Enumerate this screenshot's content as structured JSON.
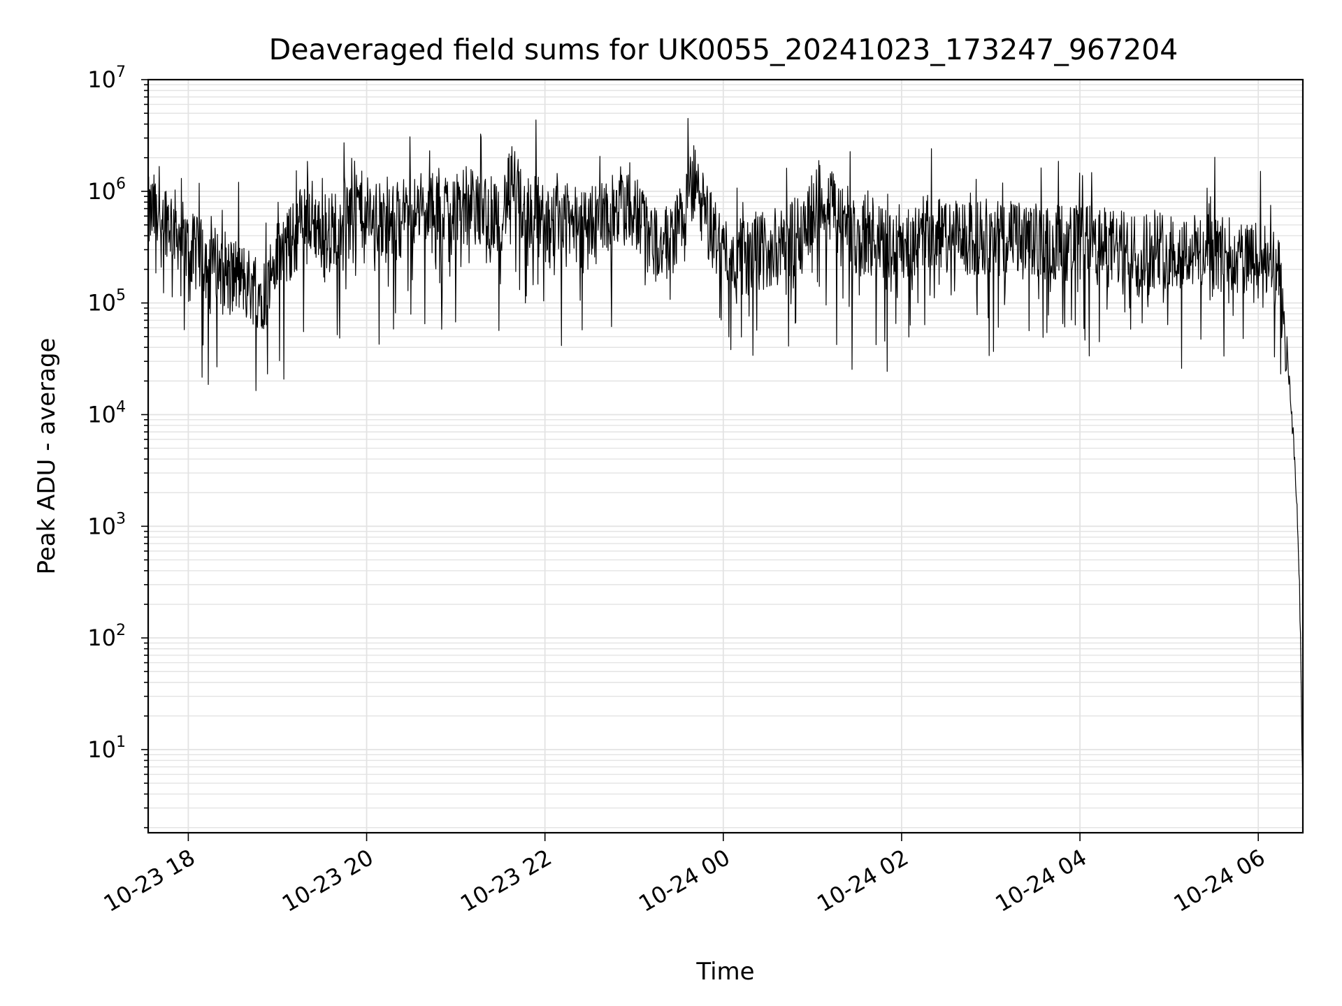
{
  "chart_data": {
    "type": "line",
    "title": "Deaveraged field sums for UK0055_20241023_173247_967204",
    "xlabel": "Time",
    "ylabel": "Peak ADU - average",
    "yscale": "log",
    "ylim": [
      1.8,
      10000000
    ],
    "xlim": [
      "2024-10-23 17:33",
      "2024-10-24 06:30"
    ],
    "grid": true,
    "line_color": "#000000",
    "x_ticks": [
      {
        "label": "10-23 18",
        "value": "2024-10-23 18:00"
      },
      {
        "label": "10-23 20",
        "value": "2024-10-23 20:00"
      },
      {
        "label": "10-23 22",
        "value": "2024-10-23 22:00"
      },
      {
        "label": "10-24 00",
        "value": "2024-10-24 00:00"
      },
      {
        "label": "10-24 02",
        "value": "2024-10-24 02:00"
      },
      {
        "label": "10-24 04",
        "value": "2024-10-24 04:00"
      },
      {
        "label": "10-24 06",
        "value": "2024-10-24 06:00"
      }
    ],
    "y_ticks": [
      {
        "base": "10",
        "exp": "1",
        "value": 10
      },
      {
        "base": "10",
        "exp": "2",
        "value": 100
      },
      {
        "base": "10",
        "exp": "3",
        "value": 1000
      },
      {
        "base": "10",
        "exp": "4",
        "value": 10000
      },
      {
        "base": "10",
        "exp": "5",
        "value": 100000
      },
      {
        "base": "10",
        "exp": "6",
        "value": 1000000
      },
      {
        "base": "10",
        "exp": "7",
        "value": 10000000
      }
    ],
    "series": [
      {
        "x": [
          "2024-10-23 17:33",
          "2024-10-23 17:40",
          "2024-10-23 17:50",
          "2024-10-23 18:00",
          "2024-10-23 18:10",
          "2024-10-23 18:25",
          "2024-10-23 18:40",
          "2024-10-23 18:50",
          "2024-10-23 19:00",
          "2024-10-23 19:10",
          "2024-10-23 19:20",
          "2024-10-23 19:30",
          "2024-10-23 19:40",
          "2024-10-23 19:50",
          "2024-10-23 20:00",
          "2024-10-23 20:15",
          "2024-10-23 20:30",
          "2024-10-23 20:45",
          "2024-10-23 21:00",
          "2024-10-23 21:15",
          "2024-10-23 21:30",
          "2024-10-23 21:38",
          "2024-10-23 21:45",
          "2024-10-23 22:00",
          "2024-10-23 22:20",
          "2024-10-23 22:40",
          "2024-10-23 23:00",
          "2024-10-23 23:10",
          "2024-10-23 23:20",
          "2024-10-23 23:30",
          "2024-10-23 23:40",
          "2024-10-23 23:50",
          "2024-10-24 00:00",
          "2024-10-24 00:15",
          "2024-10-24 00:30",
          "2024-10-24 00:45",
          "2024-10-24 00:55",
          "2024-10-24 01:05",
          "2024-10-24 01:15",
          "2024-10-24 01:25",
          "2024-10-24 01:40",
          "2024-10-24 02:00",
          "2024-10-24 02:20",
          "2024-10-24 02:40",
          "2024-10-24 03:00",
          "2024-10-24 03:30",
          "2024-10-24 04:00",
          "2024-10-24 04:30",
          "2024-10-24 05:00",
          "2024-10-24 05:30",
          "2024-10-24 05:50",
          "2024-10-24 06:10",
          "2024-10-24 06:15",
          "2024-10-24 06:18",
          "2024-10-24 06:21",
          "2024-10-24 06:24",
          "2024-10-24 06:26",
          "2024-10-24 06:28",
          "2024-10-24 06:30"
        ],
        "y": [
          600000,
          700000,
          500000,
          300000,
          250000,
          200000,
          150000,
          120000,
          250000,
          350000,
          700000,
          400000,
          500000,
          900000,
          600000,
          500000,
          700000,
          600000,
          800000,
          700000,
          600000,
          1200000,
          700000,
          600000,
          500000,
          600000,
          700000,
          400000,
          300000,
          500000,
          1200000,
          500000,
          300000,
          250000,
          300000,
          350000,
          500000,
          900000,
          700000,
          400000,
          350000,
          350000,
          450000,
          350000,
          400000,
          350000,
          350000,
          300000,
          300000,
          280000,
          250000,
          200000,
          150000,
          50000,
          20000,
          5000,
          1500,
          200,
          4
        ]
      }
    ]
  }
}
